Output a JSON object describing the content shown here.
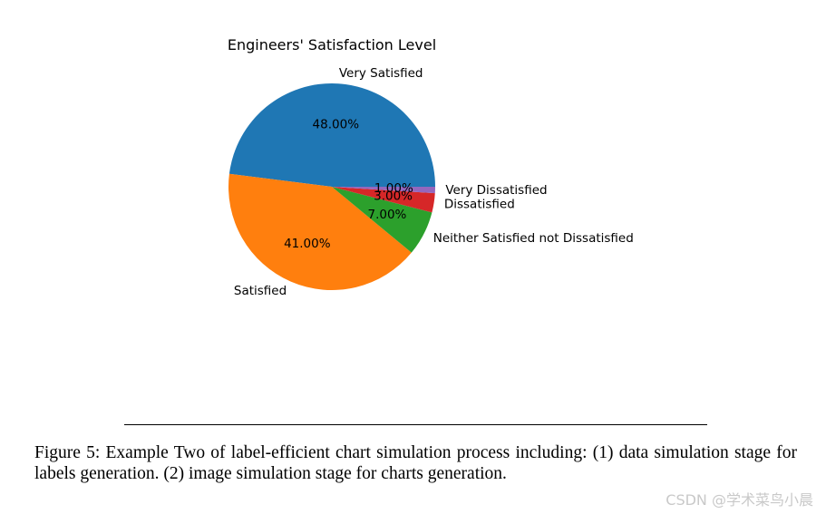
{
  "chart_data": {
    "type": "pie",
    "title": "Engineers' Satisfaction Level",
    "startangle_deg": 0,
    "direction": "counterclockwise",
    "slices": [
      {
        "label": "Very Satisfied",
        "value": 48.0,
        "pct_text": "48.00%",
        "color": "#1f77b4"
      },
      {
        "label": "Satisfied",
        "value": 41.0,
        "pct_text": "41.00%",
        "color": "#ff7f0e"
      },
      {
        "label": "Neither Satisfied not Dissatisfied",
        "value": 7.0,
        "pct_text": "7.00%",
        "color": "#2ca02c"
      },
      {
        "label": "Dissatisfied",
        "value": 3.0,
        "pct_text": "3.00%",
        "color": "#d62728"
      },
      {
        "label": "Very Dissatisfied",
        "value": 1.0,
        "pct_text": "1.00%",
        "color": "#9467bd"
      }
    ]
  },
  "caption": "Figure 5: Example Two of label-efficient chart simulation process including: (1) data simulation stage for labels generation. (2) image simulation stage for charts generation.",
  "watermark": "CSDN @学术菜鸟小晨"
}
